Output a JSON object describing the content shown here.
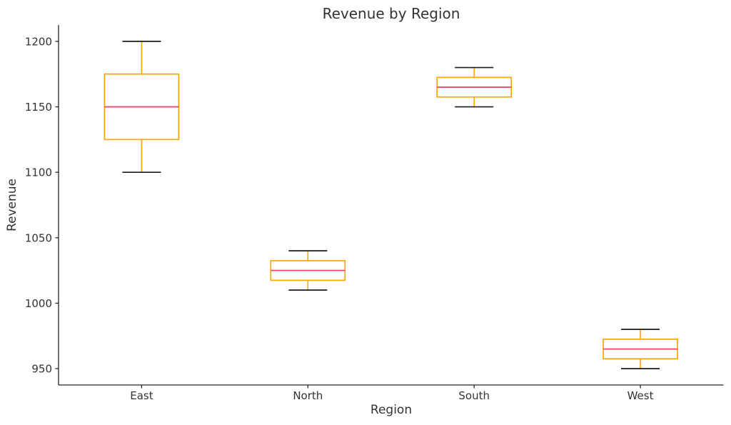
{
  "chart_data": {
    "type": "box",
    "title": "Revenue by Region",
    "xlabel": "Region",
    "ylabel": "Revenue",
    "categories": [
      "East",
      "North",
      "South",
      "West"
    ],
    "series": [
      {
        "name": "East",
        "whisker_low": 1100,
        "q1": 1125,
        "median": 1150,
        "q3": 1175,
        "whisker_high": 1200
      },
      {
        "name": "North",
        "whisker_low": 1010,
        "q1": 1017.5,
        "median": 1025,
        "q3": 1032.5,
        "whisker_high": 1040
      },
      {
        "name": "South",
        "whisker_low": 1150,
        "q1": 1157.5,
        "median": 1165,
        "q3": 1172.5,
        "whisker_high": 1180
      },
      {
        "name": "West",
        "whisker_low": 950,
        "q1": 957.5,
        "median": 965,
        "q3": 972.5,
        "whisker_high": 980
      }
    ],
    "yticks": [
      950,
      1000,
      1050,
      1100,
      1150,
      1200
    ],
    "ylim": [
      937.5,
      1212.5
    ],
    "xlim": [
      0.5,
      4.5
    ],
    "grid": false,
    "legend": "none",
    "colors": {
      "box": "#FFA500",
      "whisker": "#FFA500",
      "median": "#EF476F",
      "cap": "#1A1A1A",
      "axis": "#262626",
      "text": "#333333"
    }
  }
}
